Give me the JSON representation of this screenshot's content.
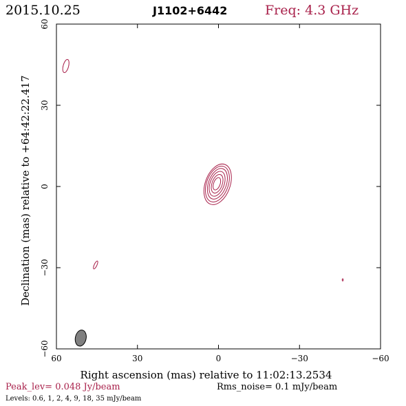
{
  "header": {
    "date": "2015.10.25",
    "source": "J1102+6442",
    "freq": "Freq: 4.3 GHz"
  },
  "colors": {
    "contour": "#a8204a",
    "axis": "#000000",
    "beam_fill": "#808080"
  },
  "footer": {
    "peak": "Peak_lev=  0.048 Jy/beam",
    "rms": "Rms_noise=   0.1 mJy/beam",
    "levels": "Levels: 0.6,    1,    2,    4,    9,   18,   35 mJy/beam"
  },
  "chart_data": {
    "type": "contour",
    "title": "",
    "xlabel": "Right ascension (mas) relative to 11:02:13.2534",
    "ylabel": "Declination (mas) relative to +64:42:22.417",
    "xlim": [
      60,
      -60
    ],
    "ylim": [
      -60,
      60
    ],
    "x_ticks": [
      60,
      30,
      0,
      -30,
      -60
    ],
    "y_ticks": [
      -60,
      -30,
      0,
      30,
      60
    ],
    "x_tick_labels": [
      "60",
      "30",
      "0",
      "−30",
      "−60"
    ],
    "y_tick_labels": [
      "−60",
      "−30",
      "0",
      "30",
      "60"
    ],
    "levels_mJy_per_beam": [
      0.6,
      1,
      2,
      4,
      9,
      18,
      35
    ],
    "peak_Jy_per_beam": 0.048,
    "rms_mJy_per_beam": 0.1,
    "core_contours": [
      {
        "x": 0.3,
        "y": 0.8,
        "rx": 4.6,
        "ry": 7.8,
        "angle": 20
      },
      {
        "x": 0.4,
        "y": 0.9,
        "rx": 4.0,
        "ry": 6.9,
        "angle": 20
      },
      {
        "x": 0.4,
        "y": 1.0,
        "rx": 3.3,
        "ry": 5.9,
        "angle": 20
      },
      {
        "x": 0.5,
        "y": 1.0,
        "rx": 2.6,
        "ry": 4.8,
        "angle": 20
      },
      {
        "x": 0.5,
        "y": 1.0,
        "rx": 1.9,
        "ry": 3.6,
        "angle": 20
      },
      {
        "x": 0.6,
        "y": 1.0,
        "rx": 1.2,
        "ry": 2.4,
        "angle": 20
      }
    ],
    "isolated_contours": [
      {
        "x": 56.5,
        "y": 44.5,
        "rx": 1.0,
        "ry": 2.5,
        "angle": 15
      },
      {
        "x": 45.5,
        "y": -29.0,
        "rx": 0.5,
        "ry": 1.6,
        "angle": 25
      },
      {
        "x": -46.0,
        "y": -34.5,
        "rx": 0.2,
        "ry": 0.4,
        "angle": 0
      }
    ],
    "beam": {
      "x": 51.0,
      "y": -56.0,
      "rx": 2.0,
      "ry": 3.0,
      "angle": 12
    }
  }
}
